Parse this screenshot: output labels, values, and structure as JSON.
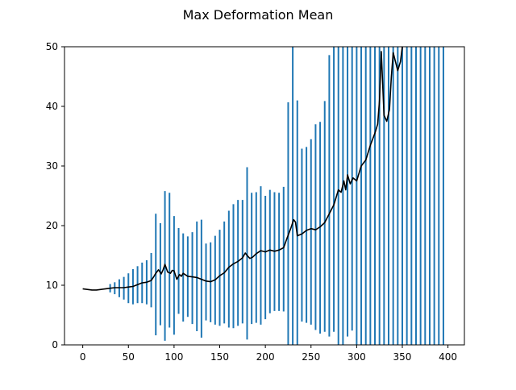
{
  "chart_data": {
    "type": "line",
    "title": "Max Deformation Mean",
    "xlabel": "",
    "ylabel": "",
    "xlim": [
      -20,
      418
    ],
    "ylim": [
      0,
      50
    ],
    "xticks": [
      0,
      50,
      100,
      150,
      200,
      250,
      300,
      350,
      400
    ],
    "yticks": [
      0,
      10,
      20,
      30,
      40,
      50
    ],
    "grid": false,
    "legend": "none",
    "colors": {
      "mean_line": "#000000",
      "error_bars": "#1f77b4"
    },
    "mean_line": {
      "x": [
        0,
        5,
        10,
        15,
        20,
        25,
        30,
        35,
        40,
        45,
        50,
        55,
        60,
        65,
        70,
        75,
        78,
        80,
        83,
        86,
        88,
        90,
        93,
        96,
        98,
        100,
        103,
        106,
        108,
        110,
        115,
        120,
        125,
        130,
        135,
        140,
        145,
        150,
        155,
        160,
        165,
        170,
        175,
        178,
        180,
        183,
        186,
        190,
        195,
        200,
        205,
        210,
        215,
        220,
        224,
        228,
        231,
        233,
        235,
        240,
        245,
        250,
        255,
        260,
        265,
        270,
        275,
        278,
        280,
        283,
        286,
        288,
        290,
        293,
        296,
        300,
        305,
        310,
        315,
        320,
        323,
        325,
        327,
        330,
        333,
        336,
        338,
        340,
        345,
        348,
        350
      ],
      "y": [
        9.4,
        9.3,
        9.2,
        9.2,
        9.3,
        9.4,
        9.5,
        9.6,
        9.6,
        9.6,
        9.7,
        9.8,
        10.1,
        10.4,
        10.5,
        10.8,
        11.5,
        12.0,
        12.6,
        11.9,
        12.6,
        13.5,
        12.2,
        12.0,
        12.5,
        12.4,
        11.0,
        11.8,
        11.5,
        12.0,
        11.5,
        11.4,
        11.3,
        11.0,
        10.7,
        10.6,
        10.9,
        11.6,
        12.1,
        13.0,
        13.6,
        14.0,
        14.6,
        15.4,
        15.0,
        14.5,
        14.7,
        15.3,
        15.8,
        15.6,
        15.9,
        15.7,
        15.9,
        16.3,
        18.0,
        19.6,
        21.0,
        20.6,
        18.3,
        18.6,
        19.2,
        19.5,
        19.3,
        19.8,
        20.5,
        22.0,
        23.5,
        25.0,
        26.0,
        25.6,
        27.5,
        26.0,
        28.5,
        27.0,
        28.0,
        27.5,
        30.0,
        31.0,
        33.5,
        35.5,
        37.0,
        41.0,
        49.2,
        38.5,
        37.5,
        39.5,
        45.0,
        49.0,
        46.0,
        47.5,
        50.0
      ]
    },
    "error_bars": {
      "x": [
        30,
        35,
        40,
        45,
        50,
        55,
        60,
        65,
        70,
        75,
        80,
        85,
        90,
        95,
        100,
        105,
        110,
        115,
        120,
        125,
        130,
        135,
        140,
        145,
        150,
        155,
        160,
        165,
        170,
        175,
        180,
        185,
        190,
        195,
        200,
        205,
        210,
        215,
        220,
        225,
        230,
        235,
        240,
        245,
        250,
        255,
        260,
        265,
        270,
        275,
        280,
        285,
        290,
        295,
        300,
        305,
        310,
        315,
        320,
        325,
        330,
        335,
        340,
        345,
        350,
        355,
        360,
        365,
        370,
        375,
        380,
        385,
        390,
        395
      ],
      "low": [
        8.8,
        8.5,
        8.0,
        7.6,
        7.0,
        6.8,
        7.0,
        7.0,
        6.8,
        6.3,
        1.6,
        3.3,
        0.7,
        2.9,
        1.7,
        5.2,
        3.9,
        4.7,
        3.5,
        2.3,
        1.2,
        4.1,
        3.8,
        3.4,
        3.2,
        3.6,
        2.9,
        2.8,
        3.2,
        3.6,
        0.9,
        3.5,
        3.7,
        3.4,
        4.3,
        5.3,
        5.7,
        5.7,
        5.6,
        0,
        0,
        0,
        3.9,
        3.7,
        3.4,
        2.5,
        1.9,
        2.2,
        1.4,
        2.2,
        0,
        0,
        1.4,
        2.4,
        0,
        0,
        0,
        0,
        0,
        0,
        0,
        0,
        0,
        0,
        0,
        0,
        0,
        0,
        0,
        0,
        0,
        0,
        0,
        0
      ],
      "high": [
        10.2,
        10.5,
        11.0,
        11.4,
        12.0,
        12.7,
        13.2,
        13.8,
        14.2,
        15.4,
        22.0,
        20.4,
        25.8,
        25.5,
        21.6,
        19.6,
        18.7,
        18.2,
        18.9,
        20.7,
        21.0,
        17.0,
        17.2,
        18.3,
        19.3,
        20.7,
        22.5,
        23.6,
        24.3,
        24.3,
        29.8,
        25.5,
        25.6,
        26.6,
        25.0,
        26.0,
        25.6,
        25.5,
        26.5,
        40.7,
        50,
        41.0,
        32.9,
        33.2,
        34.5,
        37.0,
        37.4,
        40.9,
        48.6,
        50,
        50,
        50,
        50,
        50,
        50,
        50,
        50,
        50,
        50,
        50,
        50,
        50,
        50,
        50,
        50,
        50,
        50,
        50,
        50,
        50,
        50,
        50,
        50,
        50
      ]
    }
  }
}
